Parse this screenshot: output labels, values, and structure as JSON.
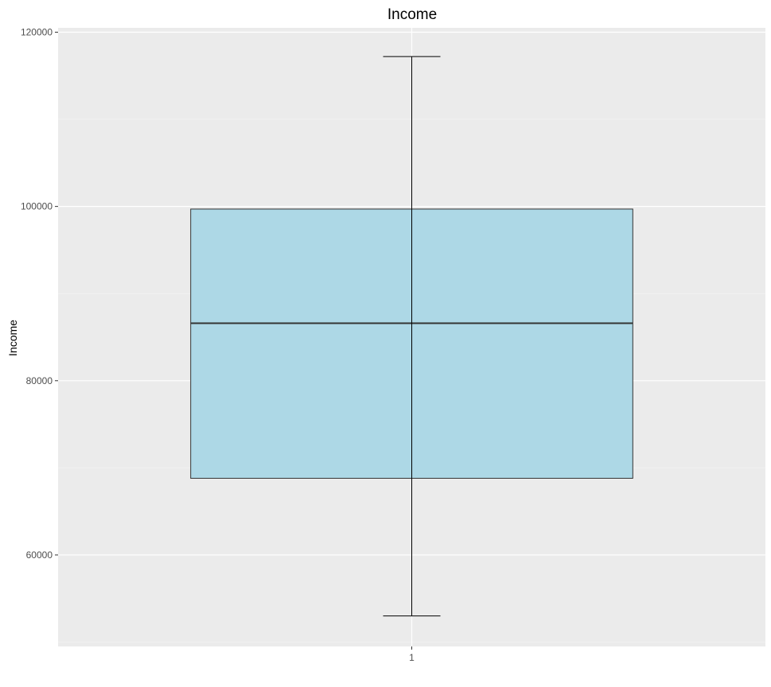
{
  "chart_data": {
    "type": "boxplot",
    "title": "Income",
    "xlabel": "",
    "ylabel": "Income",
    "categories": [
      "1"
    ],
    "ylim": [
      49500,
      120500
    ],
    "yticks": [
      60000,
      80000,
      100000,
      120000
    ],
    "grid": true,
    "legend": "none",
    "boxes": [
      {
        "category": "1",
        "whisker_low": 53000,
        "q1": 68800,
        "median": 86600,
        "q3": 99700,
        "whisker_high": 117200
      }
    ]
  },
  "colors": {
    "panel_background": "#ebebeb",
    "grid_major": "#ffffff",
    "grid_minor": "#f5f5f5",
    "box_fill": "#add8e6",
    "box_line": "#333333",
    "whisker_line": "#000000",
    "tick_text": "#4d4d4d",
    "tick_mark": "#333333"
  }
}
